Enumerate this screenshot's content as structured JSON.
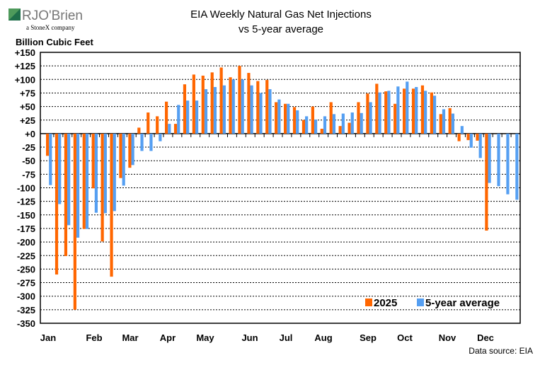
{
  "logo": {
    "brand": "RJO'Brien",
    "tagline": "a StoneX company",
    "colors": [
      "#4e9a5b",
      "#1f6f4a"
    ]
  },
  "chart_data": {
    "type": "bar",
    "title": "EIA Weekly Natural Gas Net Injections",
    "subtitle": "vs 5-year average",
    "ylabel": "Billion Cubic Feet",
    "xlabel": "",
    "ylim": [
      -350,
      150
    ],
    "ytick_step": 25,
    "ytick_labels": [
      "+150",
      "+125",
      "+100",
      "+75",
      "+50",
      "+25",
      "+0",
      "-25",
      "-50",
      "-75",
      "-100",
      "-125",
      "-150",
      "-175",
      "-200",
      "-225",
      "-250",
      "-275",
      "-300",
      "-325",
      "-350"
    ],
    "month_labels": [
      "Jan",
      "Feb",
      "Mar",
      "Apr",
      "May",
      "Jun",
      "Jul",
      "Aug",
      "Sep",
      "Oct",
      "Nov",
      "Dec"
    ],
    "grid": true,
    "legend_placement": "bottom-right",
    "series": [
      {
        "name": "2025",
        "color": "#ff6600",
        "values": [
          -41,
          -260,
          -226,
          -325,
          -176,
          -101,
          -199,
          -264,
          -82,
          -63,
          11,
          39,
          32,
          59,
          18,
          91,
          109,
          107,
          113,
          122,
          104,
          125,
          112,
          97,
          99,
          58,
          55,
          49,
          25,
          50,
          9,
          58,
          14,
          20,
          58,
          74,
          92,
          78,
          55,
          83,
          83,
          89,
          76,
          36,
          47,
          -14,
          -12,
          -13,
          -179,
          null,
          null,
          null
        ]
      },
      {
        "name": "5-year average",
        "color": "#559ff2",
        "values": [
          -95,
          -130,
          -169,
          -192,
          -176,
          -146,
          -147,
          -143,
          -96,
          -58,
          -32,
          -32,
          -14,
          18,
          53,
          61,
          61,
          82,
          86,
          89,
          100,
          100,
          89,
          75,
          82,
          63,
          55,
          43,
          32,
          26,
          32,
          36,
          37,
          39,
          38,
          58,
          76,
          79,
          87,
          96,
          86,
          79,
          70,
          45,
          37,
          14,
          -26,
          -45,
          -91,
          -97,
          -112,
          -122
        ]
      }
    ],
    "source": "Data source: EIA"
  }
}
